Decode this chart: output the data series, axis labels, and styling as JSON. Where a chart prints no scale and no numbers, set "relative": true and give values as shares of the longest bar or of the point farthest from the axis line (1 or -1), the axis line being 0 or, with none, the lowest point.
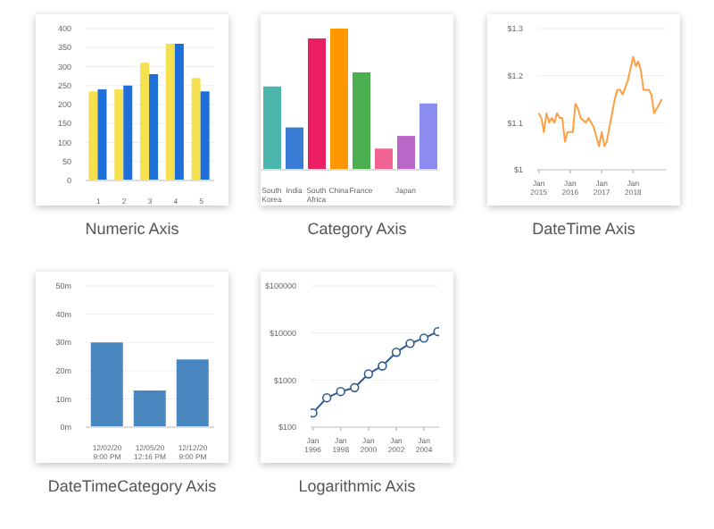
{
  "chart_data": [
    {
      "type": "bar",
      "title": "Numeric Axis",
      "categories": [
        "1",
        "2",
        "3",
        "4",
        "5"
      ],
      "series": [
        {
          "color": "#f5e050",
          "values": [
            235,
            240,
            310,
            360,
            270
          ]
        },
        {
          "color": "#1e6fd9",
          "values": [
            240,
            250,
            280,
            360,
            235
          ]
        }
      ],
      "ylim": [
        0,
        400
      ],
      "yticks": [
        0,
        50,
        100,
        150,
        200,
        250,
        300,
        350,
        400
      ],
      "grid": "y"
    },
    {
      "type": "bar",
      "title": "Category Axis",
      "relative": true,
      "categories": [
        "South Korea",
        "India",
        "South Africa",
        "China",
        "France",
        null,
        "Japan",
        null
      ],
      "values": [
        0.59,
        0.3,
        0.93,
        1,
        0.69,
        0.15,
        0.24,
        0.47
      ],
      "colors": [
        "#4db6ac",
        "#3a7bd5",
        "#e91e63",
        "#ff9800",
        "#4caf50",
        "#f06292",
        "#ba68c8",
        "#8c8cf0"
      ]
    },
    {
      "type": "line",
      "title": "DateTime Axis",
      "color": "#ff9f45",
      "x": [
        "2015-01",
        "2015-02",
        "2015-03",
        "2015-04",
        "2015-05",
        "2015-06",
        "2015-07",
        "2015-08",
        "2015-09",
        "2015-10",
        "2015-11",
        "2015-12",
        "2016-02",
        "2016-03",
        "2016-04",
        "2016-05",
        "2016-07",
        "2016-08",
        "2016-10",
        "2016-12",
        "2017-01",
        "2017-02",
        "2017-03",
        "2017-05",
        "2017-06",
        "2017-07",
        "2017-08",
        "2017-09",
        "2017-11",
        "2018-01",
        "2018-02",
        "2018-03",
        "2018-04",
        "2018-05",
        "2018-07",
        "2018-08",
        "2018-09",
        "2018-11",
        "2018-12"
      ],
      "values": [
        1.12,
        1.11,
        1.08,
        1.12,
        1.1,
        1.11,
        1.1,
        1.12,
        1.11,
        1.11,
        1.06,
        1.08,
        1.08,
        1.14,
        1.13,
        1.11,
        1.1,
        1.11,
        1.09,
        1.05,
        1.08,
        1.05,
        1.06,
        1.12,
        1.15,
        1.17,
        1.17,
        1.16,
        1.19,
        1.24,
        1.22,
        1.23,
        1.21,
        1.17,
        1.17,
        1.16,
        1.12,
        1.14,
        1.15
      ],
      "xlim": [
        "2014-12-15",
        "2019-01-15"
      ],
      "xticks": [
        {
          "value": "2015-01",
          "label": "Jan 2015"
        },
        {
          "value": "2016-01",
          "label": "Jan 2016"
        },
        {
          "value": "2017-01",
          "label": "Jan 2017"
        },
        {
          "value": "2018-01",
          "label": "Jan 2018"
        }
      ],
      "ylim": [
        1,
        1.3
      ],
      "yticks": [
        {
          "value": 1,
          "label": "$1"
        },
        {
          "value": 1.1,
          "label": "$1.1"
        },
        {
          "value": 1.2,
          "label": "$1.2"
        },
        {
          "value": 1.3,
          "label": "$1.3"
        }
      ],
      "grid": "y"
    },
    {
      "type": "bar",
      "title": "DateTimeCategory Axis",
      "color": "#4a86c0",
      "categories": [
        "12/02/20 9:00 PM",
        "12/05/20 12:16 PM",
        "12/12/20 9:00 PM"
      ],
      "values": [
        30,
        13,
        24
      ],
      "ylim": [
        0,
        50
      ],
      "yticks": [
        {
          "value": 0,
          "label": "0m"
        },
        {
          "value": 10,
          "label": "10m"
        },
        {
          "value": 20,
          "label": "20m"
        },
        {
          "value": 30,
          "label": "30m"
        },
        {
          "value": 40,
          "label": "40m"
        },
        {
          "value": 50,
          "label": "50m"
        }
      ],
      "grid": "y"
    },
    {
      "type": "line",
      "title": "Logarithmic Axis",
      "color": "#2f5b8c",
      "marker": "circle",
      "log": "y",
      "x": [
        "1996",
        "1997",
        "1998",
        "1999",
        "2000",
        "2001",
        "2002",
        "2003",
        "2004",
        "2005"
      ],
      "values": [
        200,
        420,
        570,
        690,
        1350,
        2000,
        3900,
        6000,
        7800,
        10700
      ],
      "xlim": [
        "1995-11",
        "2005-02"
      ],
      "xticks": [
        {
          "value": "1996",
          "label": "Jan 1996"
        },
        {
          "value": "1998",
          "label": "Jan 1998"
        },
        {
          "value": "2000",
          "label": "Jan 2000"
        },
        {
          "value": "2002",
          "label": "Jan 2002"
        },
        {
          "value": "2004",
          "label": "Jan 2004"
        }
      ],
      "ylim": [
        100,
        100000
      ],
      "yticks": [
        {
          "value": 100,
          "label": "$100"
        },
        {
          "value": 1000,
          "label": "$1000"
        },
        {
          "value": 10000,
          "label": "$10000"
        },
        {
          "value": 100000,
          "label": "$100000"
        }
      ],
      "grid": "y"
    }
  ]
}
